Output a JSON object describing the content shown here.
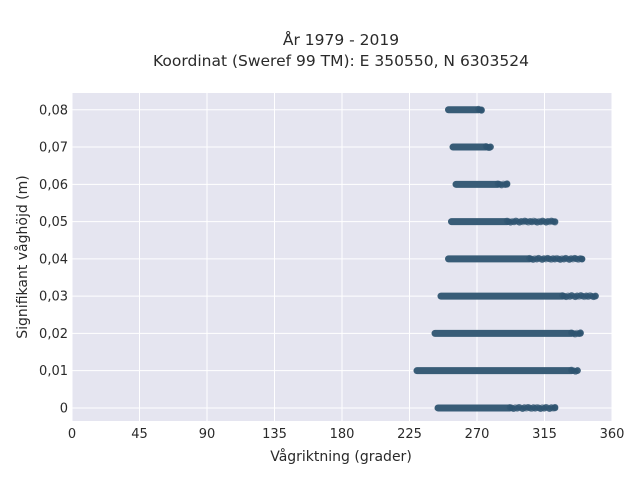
{
  "chart_data": {
    "type": "scatter",
    "title": "År 1979 - 2019",
    "subtitle": "Koordinat (Sweref 99 TM): E 350550, N 6303524",
    "xlabel": "Vågriktning (grader)",
    "ylabel": "Signifikant våghöjd (m)",
    "xlim": [
      0,
      360
    ],
    "ylim": [
      -0.0035,
      0.0845
    ],
    "x_ticks": [
      0,
      45,
      90,
      135,
      180,
      225,
      270,
      315,
      360
    ],
    "x_tick_labels": [
      "0",
      "45",
      "90",
      "135",
      "180",
      "225",
      "270",
      "315",
      "360"
    ],
    "y_ticks": [
      0,
      0.01,
      0.02,
      0.03,
      0.04,
      0.05,
      0.06,
      0.07,
      0.08
    ],
    "y_tick_labels": [
      "0",
      "0,01",
      "0,02",
      "0,03",
      "0,04",
      "0,05",
      "0,06",
      "0,07",
      "0,08"
    ],
    "grid": true,
    "point_color": "#2e5470",
    "plot_background": "#e5e5f0",
    "bands": [
      {
        "y": 0.0,
        "x_min": 244,
        "x_dense_max": 292,
        "x_max": 322
      },
      {
        "y": 0.01,
        "x_min": 230,
        "x_dense_max": 333,
        "x_max": 337
      },
      {
        "y": 0.02,
        "x_min": 242,
        "x_dense_max": 333,
        "x_max": 339
      },
      {
        "y": 0.03,
        "x_min": 246,
        "x_dense_max": 327,
        "x_max": 349
      },
      {
        "y": 0.04,
        "x_min": 251,
        "x_dense_max": 305,
        "x_max": 340
      },
      {
        "y": 0.05,
        "x_min": 253,
        "x_dense_max": 290,
        "x_max": 322
      },
      {
        "y": 0.06,
        "x_min": 256,
        "x_dense_max": 284,
        "x_max": 290
      },
      {
        "y": 0.07,
        "x_min": 254,
        "x_dense_max": 276,
        "x_max": 279
      },
      {
        "y": 0.08,
        "x_min": 251,
        "x_dense_max": 271,
        "x_max": 273
      }
    ]
  }
}
